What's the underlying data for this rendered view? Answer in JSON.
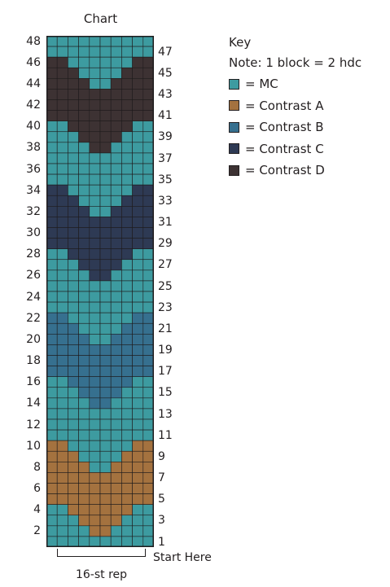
{
  "chart_title": "Chart",
  "key": {
    "title": "Key",
    "note": "Note: 1 block = 2 hdc",
    "items": [
      {
        "id": "MC",
        "label": "= MC",
        "color": "#3d9ba0"
      },
      {
        "id": "A",
        "label": "= Contrast A",
        "color": "#a4723f"
      },
      {
        "id": "B",
        "label": "= Contrast B",
        "color": "#36708f"
      },
      {
        "id": "C",
        "label": "= Contrast C",
        "color": "#2e3a54"
      },
      {
        "id": "D",
        "label": "= Contrast D",
        "color": "#3d3233"
      }
    ]
  },
  "grid": {
    "columns": 10,
    "rows_from_top": [
      "MCMCMCMCMCMCMCMCMCMC",
      "MC MC MC MC MC MC MC MC MC MC"
    ],
    "pattern_rows_top_to_bottom": [
      [
        "MC",
        "MC",
        "MC",
        "MC",
        "MC",
        "MC",
        "MC",
        "MC",
        "MC",
        "MC"
      ],
      [
        "MC",
        "MC",
        "MC",
        "MC",
        "MC",
        "MC",
        "MC",
        "MC",
        "MC",
        "MC"
      ],
      [
        "D",
        "D",
        "MC",
        "MC",
        "MC",
        "MC",
        "MC",
        "MC",
        "D",
        "D"
      ],
      [
        "D",
        "D",
        "D",
        "MC",
        "MC",
        "MC",
        "MC",
        "D",
        "D",
        "D"
      ],
      [
        "D",
        "D",
        "D",
        "D",
        "MC",
        "MC",
        "D",
        "D",
        "D",
        "D"
      ],
      [
        "D",
        "D",
        "D",
        "D",
        "D",
        "D",
        "D",
        "D",
        "D",
        "D"
      ],
      [
        "D",
        "D",
        "D",
        "D",
        "D",
        "D",
        "D",
        "D",
        "D",
        "D"
      ],
      [
        "D",
        "D",
        "D",
        "D",
        "D",
        "D",
        "D",
        "D",
        "D",
        "D"
      ],
      [
        "MC",
        "MC",
        "D",
        "D",
        "D",
        "D",
        "D",
        "D",
        "MC",
        "MC"
      ],
      [
        "MC",
        "MC",
        "MC",
        "D",
        "D",
        "D",
        "D",
        "MC",
        "MC",
        "MC"
      ],
      [
        "MC",
        "MC",
        "MC",
        "MC",
        "D",
        "D",
        "MC",
        "MC",
        "MC",
        "MC"
      ],
      [
        "MC",
        "MC",
        "MC",
        "MC",
        "MC",
        "MC",
        "MC",
        "MC",
        "MC",
        "MC"
      ],
      [
        "MC",
        "MC",
        "MC",
        "MC",
        "MC",
        "MC",
        "MC",
        "MC",
        "MC",
        "MC"
      ],
      [
        "MC",
        "MC",
        "MC",
        "MC",
        "MC",
        "MC",
        "MC",
        "MC",
        "MC",
        "MC"
      ],
      [
        "C",
        "C",
        "MC",
        "MC",
        "MC",
        "MC",
        "MC",
        "MC",
        "C",
        "C"
      ],
      [
        "C",
        "C",
        "C",
        "MC",
        "MC",
        "MC",
        "MC",
        "C",
        "C",
        "C"
      ],
      [
        "C",
        "C",
        "C",
        "C",
        "MC",
        "MC",
        "C",
        "C",
        "C",
        "C"
      ],
      [
        "C",
        "C",
        "C",
        "C",
        "C",
        "C",
        "C",
        "C",
        "C",
        "C"
      ],
      [
        "C",
        "C",
        "C",
        "C",
        "C",
        "C",
        "C",
        "C",
        "C",
        "C"
      ],
      [
        "C",
        "C",
        "C",
        "C",
        "C",
        "C",
        "C",
        "C",
        "C",
        "C"
      ],
      [
        "MC",
        "MC",
        "C",
        "C",
        "C",
        "C",
        "C",
        "C",
        "MC",
        "MC"
      ],
      [
        "MC",
        "MC",
        "MC",
        "C",
        "C",
        "C",
        "C",
        "MC",
        "MC",
        "MC"
      ],
      [
        "MC",
        "MC",
        "MC",
        "MC",
        "C",
        "C",
        "MC",
        "MC",
        "MC",
        "MC"
      ],
      [
        "MC",
        "MC",
        "MC",
        "MC",
        "MC",
        "MC",
        "MC",
        "MC",
        "MC",
        "MC"
      ],
      [
        "MC",
        "MC",
        "MC",
        "MC",
        "MC",
        "MC",
        "MC",
        "MC",
        "MC",
        "MC"
      ],
      [
        "MC",
        "MC",
        "MC",
        "MC",
        "MC",
        "MC",
        "MC",
        "MC",
        "MC",
        "MC"
      ],
      [
        "B",
        "B",
        "MC",
        "MC",
        "MC",
        "MC",
        "MC",
        "MC",
        "B",
        "B"
      ],
      [
        "B",
        "B",
        "B",
        "MC",
        "MC",
        "MC",
        "MC",
        "B",
        "B",
        "B"
      ],
      [
        "B",
        "B",
        "B",
        "B",
        "MC",
        "MC",
        "B",
        "B",
        "B",
        "B"
      ],
      [
        "B",
        "B",
        "B",
        "B",
        "B",
        "B",
        "B",
        "B",
        "B",
        "B"
      ],
      [
        "B",
        "B",
        "B",
        "B",
        "B",
        "B",
        "B",
        "B",
        "B",
        "B"
      ],
      [
        "B",
        "B",
        "B",
        "B",
        "B",
        "B",
        "B",
        "B",
        "B",
        "B"
      ],
      [
        "MC",
        "MC",
        "B",
        "B",
        "B",
        "B",
        "B",
        "B",
        "MC",
        "MC"
      ],
      [
        "MC",
        "MC",
        "MC",
        "B",
        "B",
        "B",
        "B",
        "MC",
        "MC",
        "MC"
      ],
      [
        "MC",
        "MC",
        "MC",
        "MC",
        "B",
        "B",
        "MC",
        "MC",
        "MC",
        "MC"
      ],
      [
        "MC",
        "MC",
        "MC",
        "MC",
        "MC",
        "MC",
        "MC",
        "MC",
        "MC",
        "MC"
      ],
      [
        "MC",
        "MC",
        "MC",
        "MC",
        "MC",
        "MC",
        "MC",
        "MC",
        "MC",
        "MC"
      ],
      [
        "MC",
        "MC",
        "MC",
        "MC",
        "MC",
        "MC",
        "MC",
        "MC",
        "MC",
        "MC"
      ],
      [
        "A",
        "A",
        "MC",
        "MC",
        "MC",
        "MC",
        "MC",
        "MC",
        "A",
        "A"
      ],
      [
        "A",
        "A",
        "A",
        "MC",
        "MC",
        "MC",
        "MC",
        "A",
        "A",
        "A"
      ],
      [
        "A",
        "A",
        "A",
        "A",
        "MC",
        "MC",
        "A",
        "A",
        "A",
        "A"
      ],
      [
        "A",
        "A",
        "A",
        "A",
        "A",
        "A",
        "A",
        "A",
        "A",
        "A"
      ],
      [
        "A",
        "A",
        "A",
        "A",
        "A",
        "A",
        "A",
        "A",
        "A",
        "A"
      ],
      [
        "A",
        "A",
        "A",
        "A",
        "A",
        "A",
        "A",
        "A",
        "A",
        "A"
      ],
      [
        "MC",
        "MC",
        "A",
        "A",
        "A",
        "A",
        "A",
        "A",
        "MC",
        "MC"
      ],
      [
        "MC",
        "MC",
        "MC",
        "A",
        "A",
        "A",
        "A",
        "MC",
        "MC",
        "MC"
      ],
      [
        "MC",
        "MC",
        "MC",
        "MC",
        "A",
        "A",
        "MC",
        "MC",
        "MC",
        "MC"
      ],
      [
        "MC",
        "MC",
        "MC",
        "MC",
        "MC",
        "MC",
        "MC",
        "MC",
        "MC",
        "MC"
      ]
    ]
  },
  "row_numbers_left": [
    "48",
    "46",
    "44",
    "42",
    "40",
    "38",
    "36",
    "34",
    "32",
    "30",
    "28",
    "26",
    "24",
    "22",
    "20",
    "18",
    "16",
    "14",
    "12",
    "10",
    "8",
    "6",
    "4",
    "2"
  ],
  "row_numbers_right": [
    "47",
    "45",
    "43",
    "41",
    "39",
    "37",
    "35",
    "33",
    "31",
    "29",
    "27",
    "25",
    "23",
    "21",
    "19",
    "17",
    "15",
    "13",
    "11",
    "9",
    "7",
    "5",
    "3",
    "1"
  ],
  "start_label": "Start Here",
  "repeat_label": "16-st rep"
}
